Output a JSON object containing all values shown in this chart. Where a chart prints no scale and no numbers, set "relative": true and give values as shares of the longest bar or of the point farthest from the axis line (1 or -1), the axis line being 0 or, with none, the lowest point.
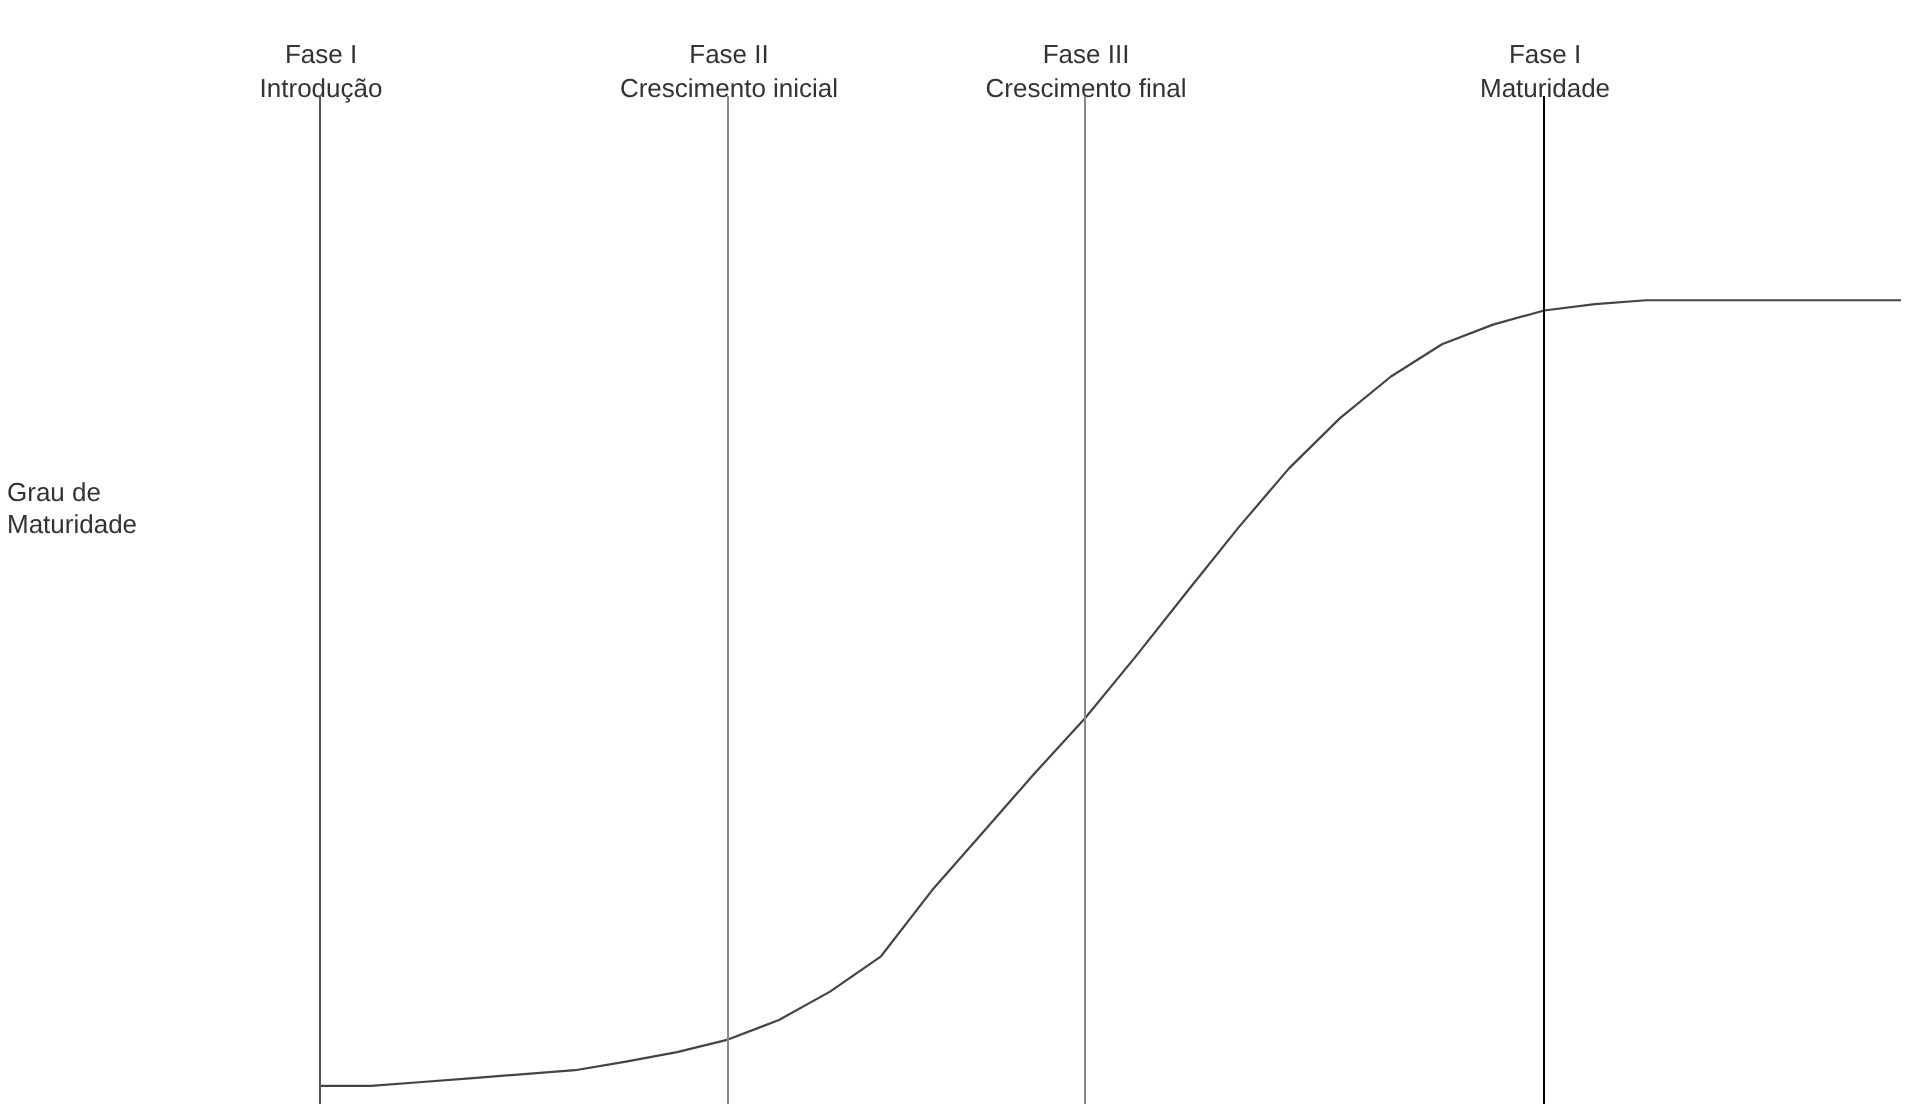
{
  "chart_data": {
    "type": "line",
    "relative": true,
    "ylabel": "Grau de\nMaturidade",
    "tick_labels": "x",
    "grid": false,
    "marker": "none",
    "line_style": "solid",
    "categories": [
      "Fase I\nIntrodução",
      null,
      null,
      null,
      null,
      null,
      null,
      null,
      "Fase II\nCrescimento inicial",
      null,
      null,
      null,
      null,
      null,
      null,
      "Fase III\nCrescimento final",
      null,
      null,
      null,
      null,
      null,
      null,
      null,
      null,
      "Fase I\nMaturidade",
      null,
      null,
      null,
      null,
      null,
      null,
      null
    ],
    "series": [
      {
        "color": "#444444",
        "values": [
          0,
          0,
          0.005,
          0.01,
          0.015,
          0.02,
          0.031,
          0.043,
          0.059,
          0.084,
          0.12,
          0.165,
          0.249,
          0.323,
          0.397,
          0.468,
          0.547,
          0.629,
          0.71,
          0.786,
          0.85,
          0.903,
          0.944,
          0.969,
          0.987,
          0.995,
          1,
          1,
          1,
          1,
          1,
          1
        ]
      }
    ],
    "ref_lines": [
      {
        "axis": "x",
        "value": "Fase I\nIntrodução",
        "color": "#555555"
      },
      {
        "axis": "x",
        "value": "Fase II\nCrescimento inicial",
        "color": "#888888"
      },
      {
        "axis": "x",
        "value": "Fase III\nCrescimento final",
        "color": "#888888"
      },
      {
        "axis": "x",
        "value": "Fase I\nMaturidade",
        "color": "#000000"
      }
    ]
  }
}
